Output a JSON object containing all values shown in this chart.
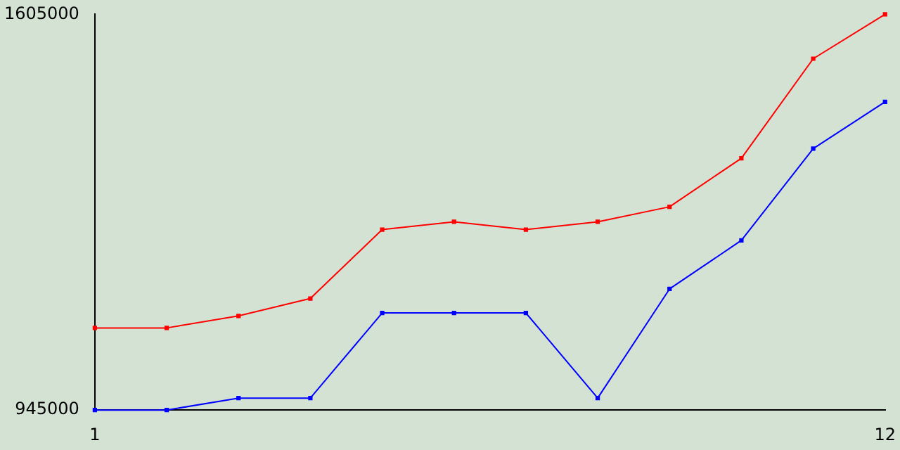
{
  "chart_data": {
    "type": "line",
    "x": [
      1,
      2,
      3,
      4,
      5,
      6,
      7,
      8,
      9,
      10,
      11,
      12
    ],
    "series": [
      {
        "color": "#ff0000",
        "values": [
          1082000,
          1082000,
          1102000,
          1131000,
          1246000,
          1259000,
          1246000,
          1259000,
          1284000,
          1365000,
          1531000,
          1605000
        ]
      },
      {
        "color": "#0000ff",
        "values": [
          945000,
          945000,
          965000,
          965000,
          1107000,
          1107000,
          1107000,
          965000,
          1147000,
          1228000,
          1381000,
          1459000
        ]
      }
    ],
    "xlim": [
      1,
      12
    ],
    "xticks": [
      1,
      12
    ],
    "ylim": [
      945000,
      1605000
    ],
    "yticks": [
      945000,
      1605000
    ],
    "grid": false,
    "legend": false,
    "marker": "square",
    "line_style": "solid"
  }
}
